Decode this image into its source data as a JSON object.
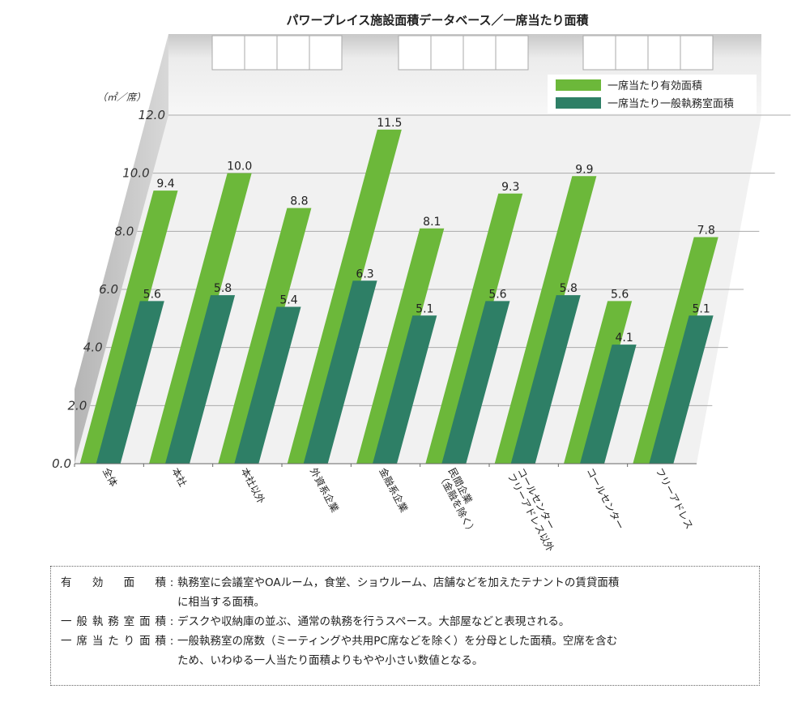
{
  "chart_data": {
    "type": "bar",
    "title": "パワープレイス施設面積データベース／一席当たり面積",
    "unit_label": "（㎡／席）",
    "ylim": [
      0,
      12
    ],
    "y_ticks": [
      "0.0",
      "2.0",
      "4.0",
      "6.0",
      "8.0",
      "10.0",
      "12.0"
    ],
    "categories": [
      "全体",
      "本社",
      "本社以外",
      "外資系企業",
      "金融系企業",
      "民間企業（金融を除く）",
      "コールセンターフリーアドレス以外",
      "コールセンター",
      "フリーアドレス"
    ],
    "category_lines": [
      [
        "全体"
      ],
      [
        "本社"
      ],
      [
        "本社以外"
      ],
      [
        "外資系企業"
      ],
      [
        "金融系企業"
      ],
      [
        "民間企業",
        "（金融を除く）"
      ],
      [
        "コールセンター",
        "フリーアドレス以外"
      ],
      [
        "コールセンター"
      ],
      [
        "フリーアドレス"
      ]
    ],
    "series": [
      {
        "name": "一席当たり有効面積",
        "color": "#6cb83a",
        "values": [
          9.4,
          10.0,
          8.8,
          11.5,
          8.1,
          9.3,
          9.9,
          5.6,
          7.8
        ]
      },
      {
        "name": "一席当たり一般執務室面積",
        "color": "#2e7f66",
        "values": [
          5.6,
          5.8,
          5.4,
          6.3,
          5.1,
          5.6,
          5.8,
          4.1,
          5.1
        ]
      }
    ],
    "value_labels": [
      [
        "9.4",
        "10.0",
        "8.8",
        "11.5",
        "8.1",
        "9.3",
        "9.9",
        "5.6",
        "7.8"
      ],
      [
        "5.6",
        "5.8",
        "5.4",
        "6.3",
        "5.1",
        "5.6",
        "5.8",
        "4.1",
        "5.1"
      ]
    ],
    "legend_position": "top-right",
    "grid": true
  },
  "notes": [
    {
      "term": "有効面積",
      "desc_lines": [
        "執務室に会議室やOAルーム，食堂、ショウルーム、店舗などを加えたテナントの賃貸面積",
        "に相当する面積。"
      ]
    },
    {
      "term": "一般執務室面積",
      "desc_lines": [
        "デスクや収納庫の並ぶ、通常の執務を行うスペース。大部屋などと表現される。"
      ]
    },
    {
      "term": "一席当たり面積",
      "desc_lines": [
        "一般執務室の席数（ミーティングや共用PC席などを除く）を分母とした面積。空席を含む",
        "ため、いわゆる一人当たり面積よりもやや小さい数値となる。"
      ]
    }
  ]
}
